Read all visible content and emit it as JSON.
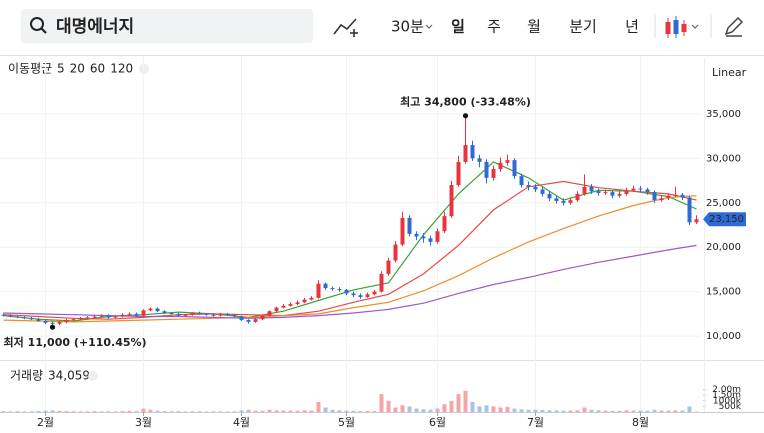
{
  "toolbar": {
    "search": "대명에너지",
    "interval": "30분",
    "periods": [
      "일",
      "주",
      "월",
      "분기",
      "년"
    ],
    "selected_period": 0
  },
  "chart_data": {
    "type": "candlestick",
    "scale_label": "Linear",
    "ma_title": "이동평균",
    "xlim": [
      -0.5,
      99.5
    ],
    "xticks": [
      {
        "value": 6,
        "label": "2월"
      },
      {
        "value": 20,
        "label": "3월"
      },
      {
        "value": 34,
        "label": "4월"
      },
      {
        "value": 49,
        "label": "5월"
      },
      {
        "value": 62,
        "label": "6월"
      },
      {
        "value": 76,
        "label": "7월"
      },
      {
        "value": 91,
        "label": "8월"
      }
    ],
    "ylim": [
      7870,
      41070
    ],
    "yticks": [
      {
        "value": 10000,
        "label": "10,000"
      },
      {
        "value": 15000,
        "label": "15,000"
      },
      {
        "value": 20000,
        "label": "20,000"
      },
      {
        "value": 25000,
        "label": "25,000"
      },
      {
        "value": 30000,
        "label": "30,000"
      },
      {
        "value": 35000,
        "label": "35,000"
      }
    ],
    "grid": true,
    "up_color": "#e8343f",
    "down_color": "#2f6bd6",
    "open": [
      12400,
      12300,
      12200,
      12100,
      12000,
      11900,
      11700,
      11500,
      11400,
      11600,
      11800,
      11900,
      12000,
      12100,
      12200,
      12300,
      12100,
      12200,
      12400,
      12500,
      12300,
      12900,
      13100,
      12800,
      12600,
      12500,
      12300,
      12400,
      12600,
      12500,
      12400,
      12300,
      12500,
      12400,
      12200,
      11800,
      11600,
      11900,
      12300,
      12800,
      13200,
      13400,
      13600,
      13800,
      14100,
      14300,
      15900,
      15400,
      15300,
      15200,
      14800,
      14600,
      14400,
      14700,
      15000,
      17000,
      18500,
      20300,
      23300,
      21500,
      21200,
      21000,
      20600,
      21800,
      23500,
      27000,
      29600,
      31500,
      30000,
      29600,
      27800,
      28800,
      29500,
      29800,
      28000,
      27000,
      26800,
      26500,
      26000,
      25500,
      25200,
      25000,
      25300,
      26000,
      26800,
      26300,
      26100,
      26200,
      25800,
      26000,
      26400,
      26600,
      26500,
      26200,
      25300,
      25500,
      25800,
      25900,
      25600,
      22800
    ],
    "high": [
      12550,
      12450,
      12350,
      12250,
      12150,
      12050,
      11850,
      11650,
      11750,
      11950,
      12050,
      12150,
      12250,
      12350,
      12450,
      12450,
      12350,
      12550,
      12650,
      12650,
      13000,
      13250,
      13200,
      12900,
      12700,
      12600,
      12500,
      12700,
      12750,
      12600,
      12500,
      12600,
      12600,
      12500,
      12300,
      11900,
      12000,
      12400,
      12900,
      13300,
      13600,
      13800,
      14000,
      14300,
      14500,
      16300,
      16000,
      15600,
      15500,
      15300,
      15000,
      14800,
      14900,
      15200,
      17300,
      18800,
      20700,
      24000,
      23600,
      21800,
      21600,
      21300,
      22100,
      24000,
      27500,
      30300,
      34800,
      32000,
      30400,
      29900,
      29200,
      30100,
      30400,
      30000,
      28300,
      27400,
      27100,
      26800,
      26300,
      25800,
      25500,
      25600,
      26300,
      28200,
      27100,
      26600,
      26500,
      26400,
      26300,
      26700,
      26900,
      26900,
      26700,
      26400,
      25800,
      26100,
      26800,
      26100,
      25800,
      23600
    ],
    "low": [
      12200,
      12100,
      12000,
      11900,
      11800,
      11600,
      11350,
      11000,
      11250,
      11450,
      11700,
      11800,
      11900,
      12000,
      12100,
      11950,
      11950,
      12100,
      12300,
      12150,
      12200,
      12800,
      12700,
      12500,
      12400,
      12200,
      12200,
      12300,
      12400,
      12300,
      12200,
      12200,
      12300,
      12100,
      11700,
      11400,
      11500,
      11800,
      12200,
      12700,
      13100,
      13300,
      13500,
      13700,
      14000,
      14200,
      15200,
      15100,
      15000,
      14600,
      14400,
      14200,
      14300,
      14600,
      14900,
      16800,
      18300,
      20100,
      21200,
      20800,
      20500,
      20200,
      20400,
      21600,
      23300,
      26800,
      29400,
      29700,
      29000,
      27200,
      27500,
      28500,
      29200,
      27700,
      26700,
      26400,
      26200,
      25700,
      25200,
      24900,
      24700,
      24800,
      25100,
      25800,
      26000,
      25800,
      25900,
      25500,
      25600,
      25800,
      26200,
      26200,
      25900,
      25000,
      25100,
      25300,
      25600,
      25300,
      22500,
      22600
    ],
    "close": [
      12300,
      12200,
      12100,
      12000,
      11900,
      11700,
      11500,
      11400,
      11600,
      11800,
      11900,
      12000,
      12100,
      12200,
      12300,
      12100,
      12200,
      12400,
      12500,
      12300,
      12900,
      13100,
      12800,
      12600,
      12500,
      12300,
      12400,
      12600,
      12500,
      12400,
      12300,
      12500,
      12400,
      12200,
      11800,
      11600,
      11900,
      12300,
      12800,
      13200,
      13400,
      13600,
      13800,
      14100,
      14300,
      15900,
      15400,
      15300,
      15200,
      14800,
      14600,
      14400,
      14700,
      15000,
      17000,
      18500,
      20300,
      23300,
      21500,
      21200,
      21000,
      20600,
      21800,
      23500,
      27000,
      29600,
      31500,
      30000,
      29600,
      27800,
      28800,
      29500,
      29800,
      28000,
      27000,
      26800,
      26500,
      26000,
      25500,
      25200,
      25000,
      25300,
      26000,
      26800,
      26300,
      26100,
      26200,
      25800,
      26000,
      26400,
      26600,
      26500,
      26200,
      25300,
      25500,
      25800,
      25900,
      25600,
      22800,
      23150
    ],
    "last_price": {
      "value": 23150,
      "label": "23,150"
    },
    "ma": [
      {
        "name": "5",
        "color": "#3aa33a",
        "x": [
          0,
          5,
          10,
          15,
          20,
          25,
          30,
          35,
          40,
          45,
          50,
          55,
          60,
          65,
          70,
          75,
          80,
          85,
          90,
          95,
          99
        ],
        "values": [
          12300,
          11900,
          11700,
          12200,
          12400,
          12700,
          12500,
          12100,
          12800,
          14000,
          15200,
          16000,
          21400,
          26000,
          29600,
          27800,
          25300,
          26400,
          26300,
          25700,
          24300
        ]
      },
      {
        "name": "20",
        "color": "#e84a4a",
        "x": [
          0,
          5,
          10,
          15,
          20,
          25,
          30,
          35,
          40,
          45,
          50,
          55,
          60,
          65,
          70,
          75,
          80,
          85,
          90,
          95,
          99
        ],
        "values": [
          12400,
          12200,
          12000,
          11900,
          12100,
          12400,
          12500,
          12400,
          12300,
          12800,
          13800,
          14700,
          17000,
          20200,
          24200,
          26800,
          27400,
          26700,
          26300,
          26000,
          25300
        ]
      },
      {
        "name": "60",
        "color": "#f08c28",
        "x": [
          0,
          5,
          10,
          15,
          20,
          25,
          30,
          35,
          40,
          45,
          50,
          55,
          60,
          65,
          70,
          75,
          80,
          85,
          90,
          95,
          99
        ],
        "values": [
          11800,
          11700,
          11600,
          11700,
          11800,
          11900,
          12000,
          12100,
          12300,
          12500,
          13200,
          13800,
          15100,
          16800,
          18800,
          20600,
          22100,
          23500,
          24700,
          25600,
          25800
        ]
      },
      {
        "name": "120",
        "color": "#9b59c9",
        "x": [
          0,
          5,
          10,
          15,
          20,
          25,
          30,
          35,
          40,
          45,
          50,
          55,
          60,
          65,
          70,
          75,
          80,
          85,
          90,
          95,
          99
        ],
        "values": [
          12600,
          12500,
          12400,
          12300,
          12200,
          12200,
          12100,
          12000,
          12100,
          12300,
          12600,
          13000,
          13700,
          14800,
          15800,
          16600,
          17500,
          18300,
          19000,
          19700,
          20200
        ]
      }
    ],
    "annotations": [
      {
        "text": "최고 34,800 (-33.48%)",
        "x": 66,
        "value": 34800,
        "position": "above"
      },
      {
        "text": "최저 11,000 (+110.45%)",
        "x": 7,
        "value": 11000,
        "position": "below"
      }
    ],
    "volume": {
      "title": "거래량",
      "last": {
        "value": 34059,
        "label": "34,059"
      },
      "ylim": [
        0,
        4200000
      ],
      "yticks": [
        {
          "value": 500000,
          "label": "500k"
        },
        {
          "value": 1000000,
          "label": "1000k"
        },
        {
          "value": 1500000,
          "label": "1.50m"
        },
        {
          "value": 2000000,
          "label": "2.00m"
        }
      ],
      "up_color": "#f3a5aa",
      "down_color": "#a9c1ec",
      "values": [
        80000,
        60000,
        70000,
        50000,
        60000,
        90000,
        120000,
        150000,
        100000,
        80000,
        60000,
        50000,
        60000,
        70000,
        50000,
        60000,
        50000,
        80000,
        100000,
        70000,
        300000,
        200000,
        120000,
        80000,
        60000,
        70000,
        50000,
        60000,
        70000,
        50000,
        60000,
        50000,
        40000,
        60000,
        150000,
        200000,
        120000,
        100000,
        200000,
        150000,
        130000,
        120000,
        100000,
        150000,
        130000,
        900000,
        400000,
        200000,
        150000,
        120000,
        100000,
        80000,
        90000,
        100000,
        1600000,
        1000000,
        400000,
        600000,
        500000,
        300000,
        250000,
        200000,
        300000,
        700000,
        1000000,
        1600000,
        1900000,
        900000,
        500000,
        600000,
        500000,
        400000,
        450000,
        300000,
        250000,
        200000,
        200000,
        180000,
        150000,
        150000,
        120000,
        130000,
        150000,
        400000,
        200000,
        150000,
        120000,
        100000,
        100000,
        150000,
        130000,
        120000,
        110000,
        200000,
        130000,
        120000,
        150000,
        130000,
        500000,
        34059
      ]
    }
  }
}
